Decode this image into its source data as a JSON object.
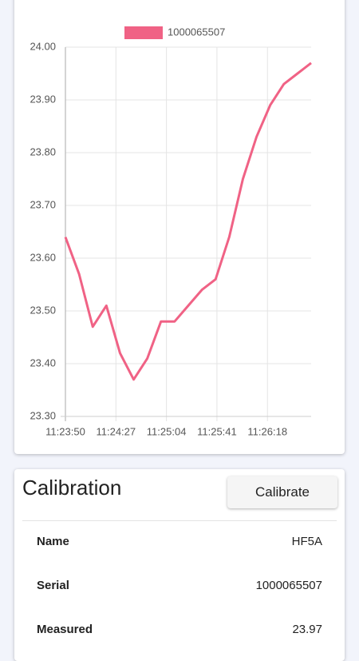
{
  "chart_data": {
    "type": "line",
    "x": [
      "11:23:50",
      "11:24:00",
      "11:24:10",
      "11:24:20",
      "11:24:30",
      "11:24:40",
      "11:24:50",
      "11:25:00",
      "11:25:10",
      "11:25:20",
      "11:25:30",
      "11:25:40",
      "11:25:50",
      "11:26:00",
      "11:26:10",
      "11:26:20",
      "11:26:30",
      "11:26:40",
      "11:26:50"
    ],
    "series": [
      {
        "name": "1000065507",
        "color": "#f06285",
        "values": [
          23.64,
          23.57,
          23.47,
          23.51,
          23.42,
          23.37,
          23.41,
          23.48,
          23.48,
          23.51,
          23.54,
          23.56,
          23.64,
          23.75,
          23.83,
          23.89,
          23.93,
          23.95,
          23.97
        ]
      }
    ],
    "xlim": [
      "11:23:50",
      "11:26:50"
    ],
    "xticks": [
      "11:23:50",
      "11:24:27",
      "11:25:04",
      "11:25:41",
      "11:26:18"
    ],
    "ylim": [
      23.3,
      24.0
    ],
    "yticks": [
      {
        "value": 23.3,
        "label": "23.30"
      },
      {
        "value": 23.4,
        "label": "23.40"
      },
      {
        "value": 23.5,
        "label": "23.50"
      },
      {
        "value": 23.6,
        "label": "23.60"
      },
      {
        "value": 23.7,
        "label": "23.70"
      },
      {
        "value": 23.8,
        "label": "23.80"
      },
      {
        "value": 23.9,
        "label": "23.90"
      },
      {
        "value": 24.0,
        "label": "24.00"
      }
    ],
    "grid": true,
    "legend": "top"
  },
  "calibration": {
    "title": "Calibration",
    "button": "Calibrate",
    "rows": [
      {
        "label": "Name",
        "value": "HF5A"
      },
      {
        "label": "Serial",
        "value": "1000065507"
      },
      {
        "label": "Measured",
        "value": "23.97"
      }
    ]
  }
}
